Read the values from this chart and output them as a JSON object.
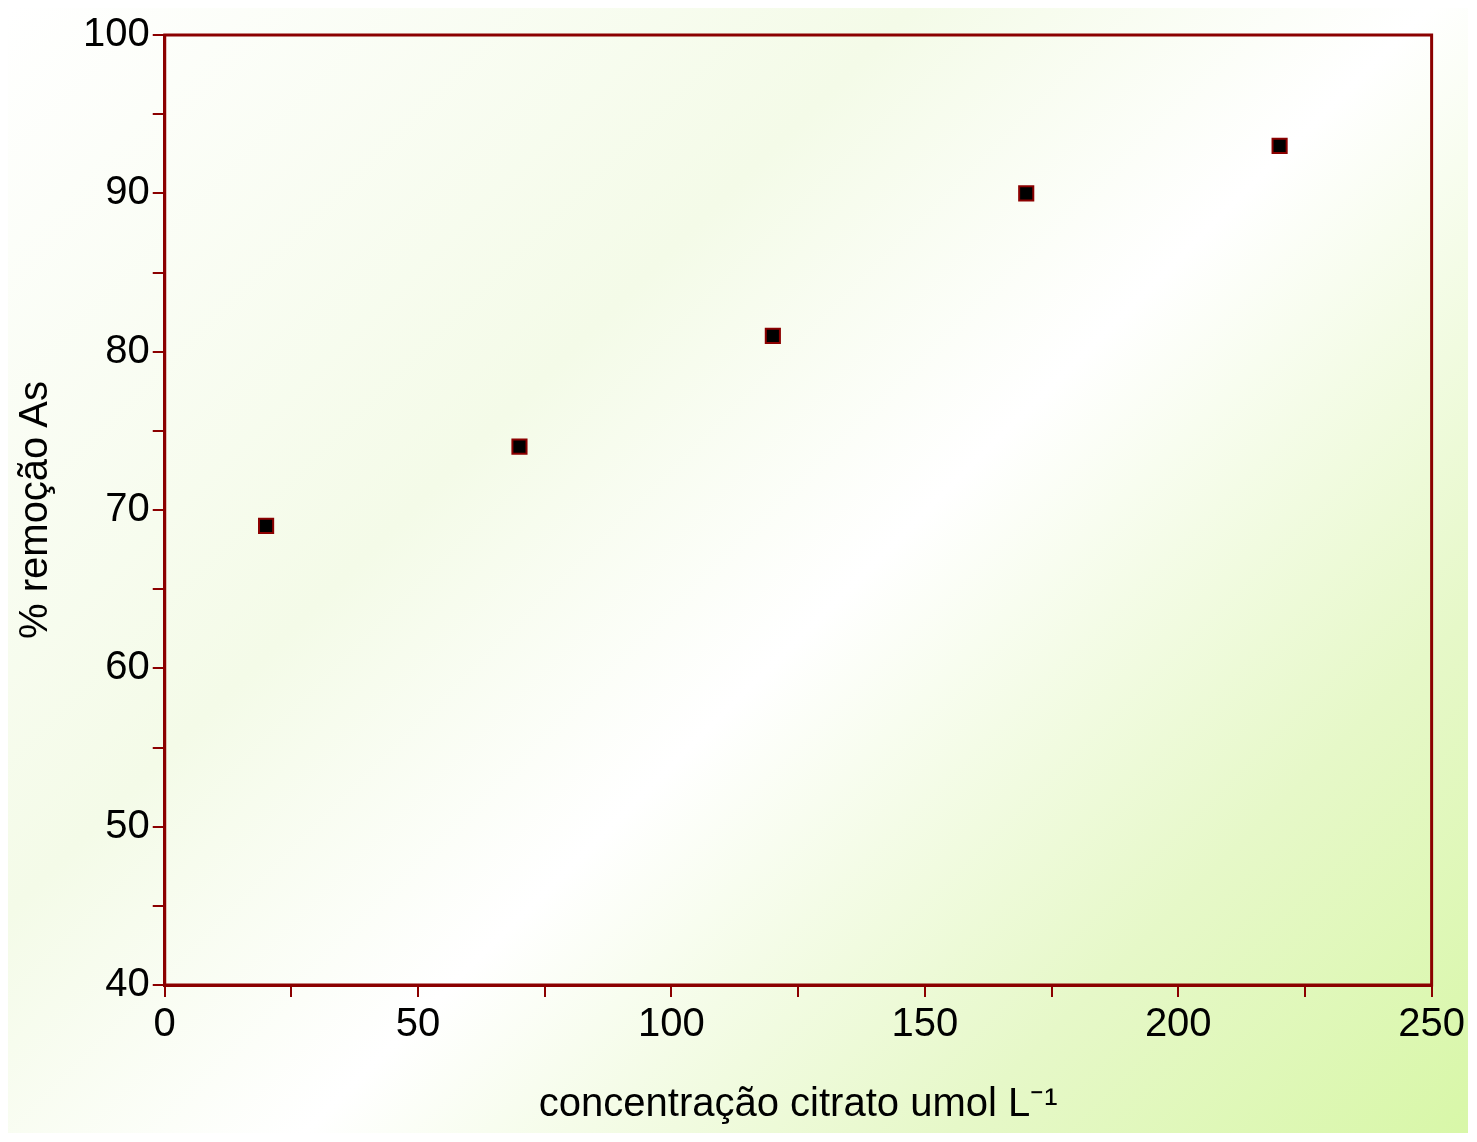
{
  "chart_data": {
    "type": "scatter",
    "xlabel": "concentração citrato umol L⁻¹",
    "ylabel": "% remoção As",
    "x": [
      20,
      70,
      120,
      170,
      220
    ],
    "series": [
      {
        "color": "#000000",
        "values": [
          69,
          74,
          81,
          90,
          93
        ]
      }
    ],
    "xlim": [
      0,
      250
    ],
    "xticks": [
      0,
      {
        "value": 25,
        "label": null
      },
      50,
      {
        "value": 75,
        "label": null
      },
      100,
      {
        "value": 125,
        "label": null
      },
      150,
      {
        "value": 175,
        "label": null
      },
      200,
      {
        "value": 225,
        "label": null
      },
      250
    ],
    "ylim": [
      40,
      100
    ],
    "yticks": [
      40,
      {
        "value": 45,
        "label": null
      },
      50,
      {
        "value": 55,
        "label": null
      },
      60,
      {
        "value": 65,
        "label": null
      },
      70,
      {
        "value": 75,
        "label": null
      },
      80,
      {
        "value": 85,
        "label": null
      },
      90,
      {
        "value": 95,
        "label": null
      },
      100
    ],
    "marker": "square",
    "grid": false,
    "legend": false
  }
}
